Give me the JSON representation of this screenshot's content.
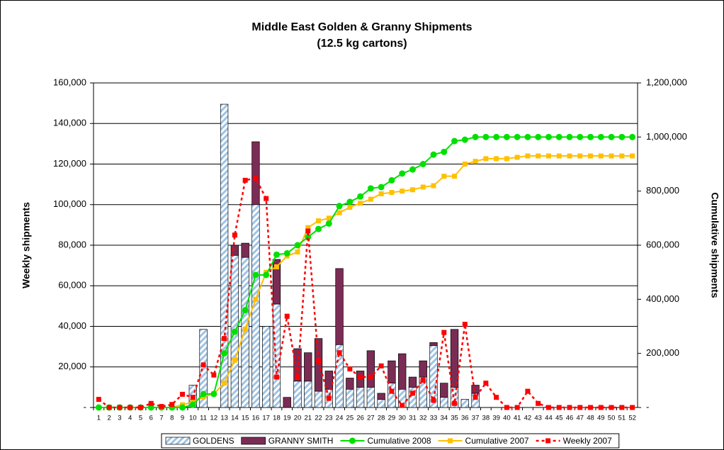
{
  "chart_data": {
    "type": "bar",
    "title": "Middle East Golden & Granny Shipments",
    "subtitle": "(12.5 kg cartons)",
    "y_label": "Weekly shipments",
    "y2_label": "Cumulative shipments",
    "categories": [
      "1",
      "2",
      "3",
      "4",
      "5",
      "6",
      "7",
      "8",
      "9",
      "10",
      "11",
      "12",
      "13",
      "14",
      "15",
      "16",
      "17",
      "18",
      "19",
      "20",
      "21",
      "22",
      "23",
      "24",
      "25",
      "26",
      "27",
      "28",
      "29",
      "30",
      "31",
      "32",
      "33",
      "34",
      "35",
      "36",
      "37",
      "38",
      "39",
      "40",
      "41",
      "42",
      "43",
      "44",
      "45",
      "46",
      "47",
      "48",
      "49",
      "50",
      "51",
      "52"
    ],
    "ylim": [
      0,
      160000
    ],
    "yticks": [
      {
        "value": 0,
        "label": "-"
      },
      {
        "value": 20000,
        "label": "20,000"
      },
      {
        "value": 40000,
        "label": "40,000"
      },
      {
        "value": 60000,
        "label": "60,000"
      },
      {
        "value": 80000,
        "label": "80,000"
      },
      {
        "value": 100000,
        "label": "100,000"
      },
      {
        "value": 120000,
        "label": "120,000"
      },
      {
        "value": 140000,
        "label": "140,000"
      },
      {
        "value": 160000,
        "label": "160,000"
      }
    ],
    "y2lim": [
      0,
      1200000
    ],
    "y2ticks": [
      {
        "value": 0,
        "label": "-"
      },
      {
        "value": 200000,
        "label": "200,000"
      },
      {
        "value": 400000,
        "label": "400,000"
      },
      {
        "value": 600000,
        "label": "600,000"
      },
      {
        "value": 800000,
        "label": "800,000"
      },
      {
        "value": 1000000,
        "label": "1,000,000"
      },
      {
        "value": 1200000,
        "label": "1,200,000"
      }
    ],
    "grid": true,
    "legend": "bottom",
    "series": [
      {
        "name": "GOLDENS",
        "type": "bar",
        "stack": true,
        "hatch": true,
        "color": "#9dc3e6",
        "values": [
          0,
          0,
          0,
          0,
          0,
          0,
          0,
          0,
          0,
          11000,
          38500,
          0,
          149500,
          75000,
          74000,
          100000,
          40000,
          51000,
          0,
          13000,
          13000,
          8000,
          9000,
          31000,
          9000,
          10000,
          10000,
          4000,
          12000,
          9000,
          10000,
          15000,
          30500,
          5000,
          10000,
          4000,
          7000,
          0,
          0,
          0,
          0,
          0,
          0,
          0,
          0,
          0,
          0,
          0,
          0,
          0,
          0,
          0
        ]
      },
      {
        "name": "GRANNY SMITH",
        "type": "bar",
        "stack": true,
        "color": "#7b2c55",
        "values": [
          0,
          0,
          0,
          0,
          0,
          0,
          0,
          0,
          0,
          0,
          0,
          0,
          0,
          5000,
          7000,
          31000,
          0,
          22000,
          5000,
          16000,
          14000,
          26000,
          9000,
          37500,
          5500,
          8000,
          18000,
          3000,
          11000,
          17500,
          5000,
          8000,
          1500,
          7000,
          28500,
          0,
          4000,
          0,
          0,
          0,
          0,
          0,
          0,
          0,
          0,
          0,
          0,
          0,
          0,
          0,
          0,
          0
        ]
      },
      {
        "name": "Cumulative 2008",
        "type": "line",
        "axis": "y2",
        "marker": "circle",
        "color": "#00e000",
        "values": [
          0,
          0,
          0,
          0,
          0,
          0,
          0,
          0,
          0,
          10000,
          50000,
          50000,
          200000,
          280000,
          360000,
          490000,
          490000,
          565000,
          570000,
          600000,
          630000,
          660000,
          680000,
          745000,
          760000,
          780000,
          810000,
          815000,
          840000,
          865000,
          880000,
          900000,
          935000,
          945000,
          985000,
          990000,
          1000000,
          1000000,
          1000000,
          1000000,
          1000000,
          1000000,
          1000000,
          1000000,
          1000000,
          1000000,
          1000000,
          1000000,
          1000000,
          1000000,
          1000000,
          1000000
        ]
      },
      {
        "name": "Cumulative 2007",
        "type": "line",
        "axis": "y2",
        "marker": "square",
        "color": "#ffc000",
        "values": [
          0,
          0,
          0,
          0,
          0,
          0,
          0,
          0,
          10000,
          20000,
          40000,
          50000,
          90000,
          175000,
          290000,
          400000,
          500000,
          520000,
          560000,
          575000,
          665000,
          690000,
          700000,
          720000,
          740000,
          755000,
          770000,
          790000,
          795000,
          800000,
          805000,
          815000,
          820000,
          855000,
          855000,
          900000,
          910000,
          920000,
          920000,
          920000,
          925000,
          930000,
          930000,
          930000,
          930000,
          930000,
          930000,
          930000,
          930000,
          930000,
          930000,
          930000
        ]
      },
      {
        "name": "Weekly 2007",
        "type": "line",
        "marker": "square",
        "dashed": true,
        "color": "#ff0000",
        "values": [
          4000,
          0,
          0,
          0,
          0,
          2000,
          500,
          1500,
          6500,
          5000,
          21000,
          16000,
          34000,
          85000,
          112000,
          113000,
          103000,
          15000,
          45000,
          15000,
          87000,
          23000,
          4500,
          27000,
          19000,
          15000,
          15000,
          20500,
          8000,
          1000,
          7000,
          13500,
          3500,
          37000,
          2000,
          41000,
          5000,
          12000,
          5000,
          0,
          0,
          8000,
          2000,
          0,
          0,
          0,
          0,
          0,
          0,
          0,
          0,
          0
        ]
      }
    ]
  }
}
